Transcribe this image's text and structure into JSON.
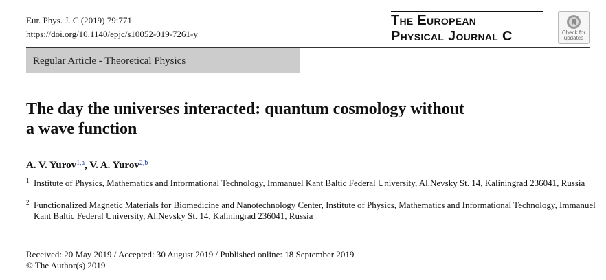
{
  "header": {
    "citation": "Eur. Phys. J. C (2019) 79:771",
    "doi": "https://doi.org/10.1140/epjc/s10052-019-7261-y"
  },
  "journal": {
    "line1": "The European",
    "line2": "Physical Journal C"
  },
  "badge": {
    "line1": "Check for",
    "line2": "updates"
  },
  "article_type": "Regular Article - Theoretical Physics",
  "title_line1": "The day the universes interacted: quantum cosmology without",
  "title_line2": "a wave function",
  "authors": [
    {
      "name": "A. V. Yurov",
      "sup": "1,a"
    },
    {
      "name": "V. A. Yurov",
      "sup": "2,b"
    }
  ],
  "author_separator": ", ",
  "affiliations": [
    {
      "num": "1",
      "text": "Institute of Physics, Mathematics and Informational Technology, Immanuel Kant Baltic Federal University, Al.Nevsky St. 14, Kaliningrad 236041, Russia"
    },
    {
      "num": "2",
      "text": "Functionalized Magnetic Materials for Biomedicine and Nanotechnology Center, Institute of Physics, Mathematics and Informational Technology, Immanuel Kant Baltic Federal University, Al.Nevsky St. 14, Kaliningrad 236041, Russia"
    }
  ],
  "dates": "Received: 20 May 2019 / Accepted: 30 August 2019 / Published online: 18 September 2019",
  "copyright": "© The Author(s) 2019"
}
